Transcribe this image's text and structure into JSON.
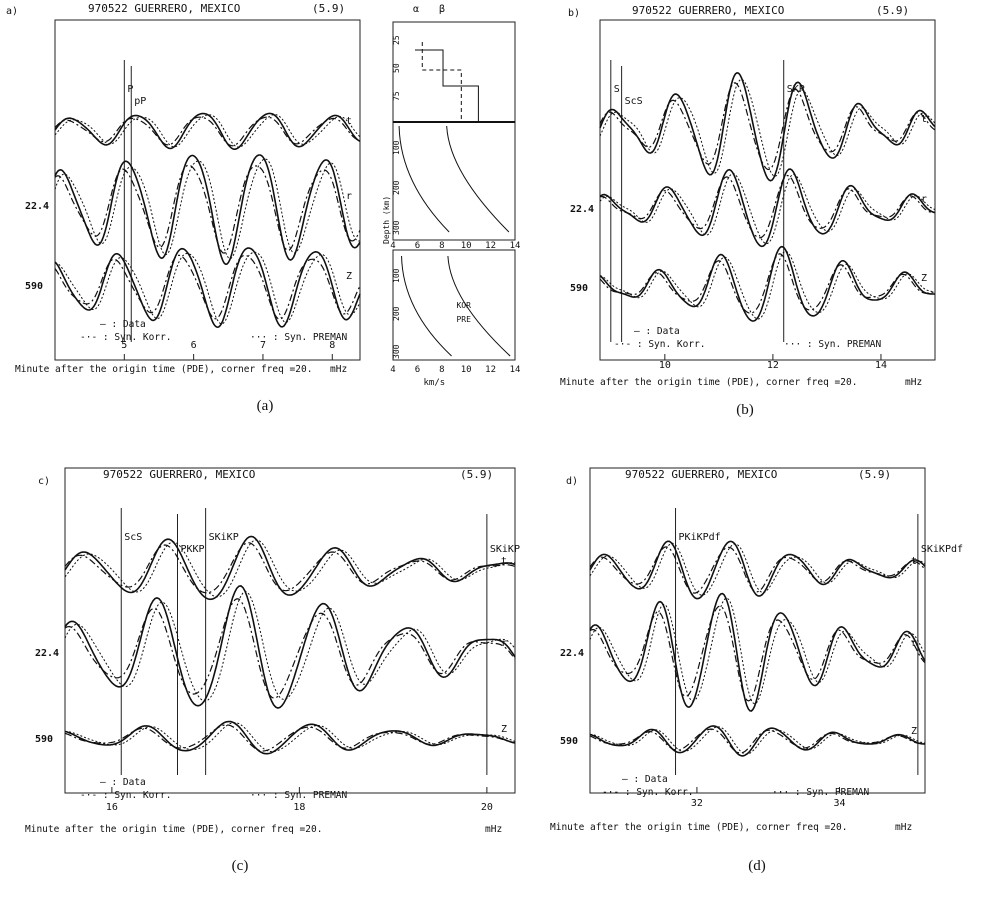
{
  "figure": {
    "captions": [
      "(a)",
      "(b)",
      "(c)",
      "(d)"
    ]
  },
  "colors": {
    "ink": "#111111",
    "axis": "#222222",
    "background": "#ffffff"
  },
  "chart_data": [
    {
      "type": "line",
      "panel_letter": "a)",
      "title": "970522 GUERRERO, MEXICO",
      "magnitude": "(5.9)",
      "xlabel": "Minute after the origin time (PDE), corner freq =20.",
      "x_unit": "mHz",
      "xlim": [
        4.0,
        8.4
      ],
      "xticks": [
        5,
        6,
        7,
        8
      ],
      "phases": [
        {
          "name": "P",
          "x": 5.0
        },
        {
          "name": "pP",
          "x": 5.1
        }
      ],
      "traces": [
        {
          "component": "top",
          "distance_label": ""
        },
        {
          "component": "middle",
          "distance_label": "22.4"
        },
        {
          "component": "bottom",
          "distance_label": "590"
        }
      ],
      "legend": [
        "— : Data",
        "-·- : Syn. Korr.",
        "··· : Syn. PREMAN"
      ],
      "inset": {
        "type": "line",
        "top_labels": [
          "α",
          "β"
        ],
        "xlabel": "km/s",
        "xticks": [
          4,
          6,
          8,
          10,
          12,
          14
        ],
        "xlim": [
          4,
          14
        ],
        "ylabel": "Depth (km)",
        "upper_yticks": [
          25,
          50,
          75
        ],
        "lower_yticks": [
          100,
          200,
          300
        ],
        "legend": [
          "KOR",
          "PRE"
        ]
      }
    },
    {
      "type": "line",
      "panel_letter": "b)",
      "title": "970522 GUERRERO, MEXICO",
      "magnitude": "(5.9)",
      "xlabel": "Minute after the origin time (PDE), corner freq =20.",
      "x_unit": "mHz",
      "xlim": [
        8.8,
        15.0
      ],
      "xticks": [
        10,
        12,
        14
      ],
      "phases": [
        {
          "name": "S",
          "x": 9.0
        },
        {
          "name": "ScS",
          "x": 9.2
        },
        {
          "name": "SKP",
          "x": 12.2
        }
      ],
      "traces": [
        {
          "component": "top",
          "distance_label": ""
        },
        {
          "component": "middle",
          "distance_label": "22.4"
        },
        {
          "component": "bottom",
          "distance_label": "590"
        }
      ],
      "legend": [
        "— : Data",
        "-·- : Syn. Korr.",
        "··· : Syn. PREMAN"
      ]
    },
    {
      "type": "line",
      "panel_letter": "c)",
      "title": "970522 GUERRERO, MEXICO",
      "magnitude": "(5.9)",
      "xlabel": "Minute after the origin time (PDE), corner freq =20.",
      "x_unit": "mHz",
      "xlim": [
        15.5,
        20.3
      ],
      "xticks": [
        16,
        18,
        20
      ],
      "phases": [
        {
          "name": "ScS",
          "x": 16.1
        },
        {
          "name": "PKKP",
          "x": 16.7
        },
        {
          "name": "SKiKP",
          "x": 17.0
        },
        {
          "name": "SKiKP",
          "x": 20.0
        }
      ],
      "traces": [
        {
          "component": "top",
          "distance_label": ""
        },
        {
          "component": "middle",
          "distance_label": "22.4"
        },
        {
          "component": "bottom",
          "distance_label": "590"
        }
      ],
      "legend": [
        "— : Data",
        "-·- : Syn. Korr.",
        "··· : Syn. PREMAN"
      ]
    },
    {
      "type": "line",
      "panel_letter": "d)",
      "title": "970522 GUERRERO, MEXICO",
      "magnitude": "(5.9)",
      "xlabel": "Minute after the origin time (PDE), corner freq =20.",
      "x_unit": "mHz",
      "xlim": [
        30.5,
        35.2
      ],
      "xticks": [
        32,
        34
      ],
      "phases": [
        {
          "name": "PKiKPdf",
          "x": 31.7
        },
        {
          "name": "SKiKPdf",
          "x": 35.1
        }
      ],
      "traces": [
        {
          "component": "top",
          "distance_label": ""
        },
        {
          "component": "middle",
          "distance_label": "22.4"
        },
        {
          "component": "bottom",
          "distance_label": "590"
        }
      ],
      "legend": [
        "— : Data",
        "-·- : Syn. Korr.",
        "··· : Syn. PREMAN"
      ]
    }
  ]
}
